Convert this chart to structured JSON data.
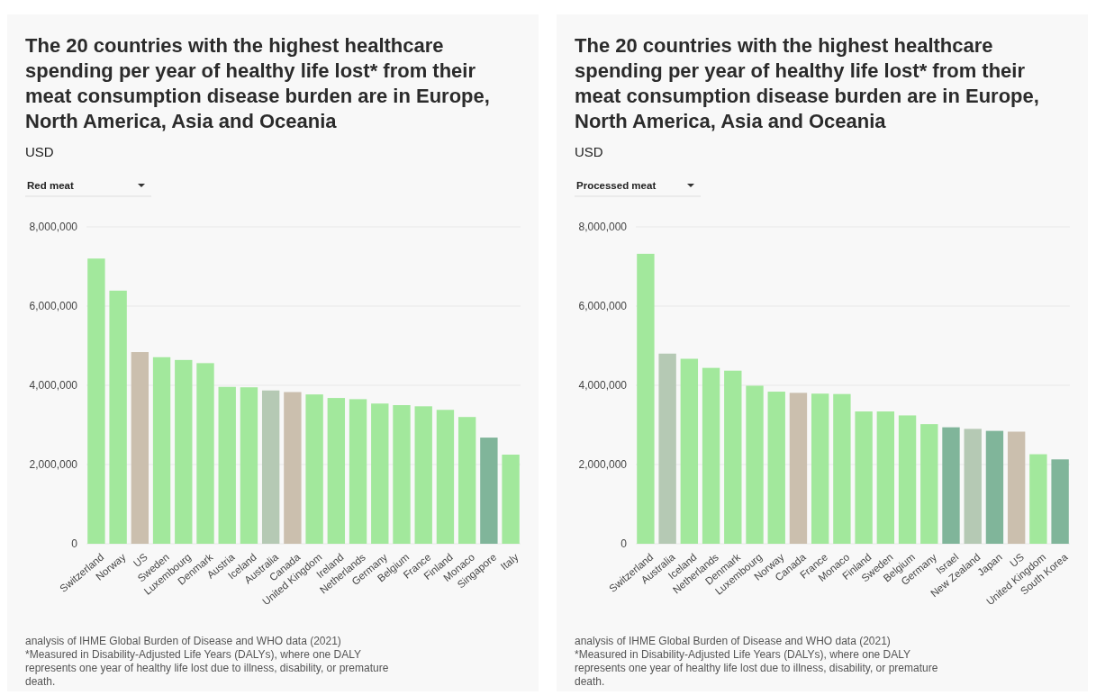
{
  "chart_data": [
    {
      "type": "bar",
      "title": "The 20 countries with the highest healthcare spending per year of healthy life lost* from their meat consumption disease burden are in Europe, North America, Asia and Oceania",
      "subtitle": "Red meat",
      "ylabel": "USD",
      "stacked": true,
      "grid": "y",
      "categories": [
        "Switzerland",
        "Norway",
        "US",
        "Sweden",
        "Luxembourg",
        "Denmark",
        "Austria",
        "Iceland",
        "Australia",
        "Canada",
        "United Kingdom",
        "Ireland",
        "Netherlands",
        "Germany",
        "Belgium",
        "France",
        "Finland",
        "Monaco",
        "Singapore",
        "Italy"
      ],
      "series": [
        {
          "color": "#a2e89c",
          "values": [
            7200000,
            6390000,
            null,
            4710000,
            4640000,
            4560000,
            3960000,
            3950000,
            null,
            null,
            3770000,
            3680000,
            3650000,
            3540000,
            3500000,
            3470000,
            3380000,
            3200000,
            null,
            2250000
          ]
        },
        {
          "color": "#cbbfae",
          "values": [
            null,
            null,
            4840000,
            null,
            null,
            null,
            null,
            null,
            null,
            3830000,
            null,
            null,
            null,
            null,
            null,
            null,
            null,
            null,
            null,
            null
          ]
        },
        {
          "color": "#80b59a",
          "values": [
            null,
            null,
            null,
            null,
            null,
            null,
            null,
            null,
            null,
            null,
            null,
            null,
            null,
            null,
            null,
            null,
            null,
            null,
            2680000,
            null
          ]
        },
        {
          "color": "#b5c9b4",
          "values": [
            null,
            null,
            null,
            null,
            null,
            null,
            null,
            null,
            3870000,
            null,
            null,
            null,
            null,
            null,
            null,
            null,
            null,
            null,
            null,
            null
          ]
        }
      ],
      "ylim": [
        0,
        8000000
      ],
      "yticks": [
        0,
        {
          "value": 2000000,
          "label": "2,000,000"
        },
        {
          "value": 4000000,
          "label": "4,000,000"
        },
        {
          "value": 6000000,
          "label": "6,000,000"
        },
        {
          "value": 8000000,
          "label": "8,000,000"
        }
      ],
      "annotations": [
        "analysis of IHME Global Burden of Disease and WHO data (2021)",
        "*Measured in Disability-Adjusted Life Years (DALYs), where one DALY represents one year of healthy life lost due to illness, disability, or premature death."
      ]
    },
    {
      "type": "bar",
      "title": "The 20 countries with the highest healthcare spending per year of healthy life lost* from their meat consumption disease burden are in Europe, North America, Asia and Oceania",
      "subtitle": "Processed meat",
      "ylabel": "USD",
      "stacked": true,
      "grid": "y",
      "categories": [
        "Switzerland",
        "Australia",
        "Iceland",
        "Netherlands",
        "Denmark",
        "Luxembourg",
        "Norway",
        "Canada",
        "France",
        "Monaco",
        "Finland",
        "Sweden",
        "Belgium",
        "Germany",
        "Israel",
        "New Zealand",
        "Japan",
        "US",
        "United Kingdom",
        "South Korea"
      ],
      "series": [
        {
          "color": "#a2e89c",
          "values": [
            7320000,
            null,
            4670000,
            4440000,
            4370000,
            3990000,
            3840000,
            null,
            3790000,
            3780000,
            3340000,
            3340000,
            3240000,
            3020000,
            null,
            null,
            null,
            null,
            2260000,
            null
          ]
        },
        {
          "color": "#cbbfae",
          "values": [
            null,
            null,
            null,
            null,
            null,
            null,
            null,
            3810000,
            null,
            null,
            null,
            null,
            null,
            null,
            null,
            null,
            null,
            2830000,
            null,
            null
          ]
        },
        {
          "color": "#80b59a",
          "values": [
            null,
            null,
            null,
            null,
            null,
            null,
            null,
            null,
            null,
            null,
            null,
            null,
            null,
            null,
            2940000,
            null,
            2850000,
            null,
            null,
            2130000
          ]
        },
        {
          "color": "#b5c9b4",
          "values": [
            null,
            4800000,
            null,
            null,
            null,
            null,
            null,
            null,
            null,
            null,
            null,
            null,
            null,
            null,
            null,
            2900000,
            null,
            null,
            null,
            null
          ]
        }
      ],
      "ylim": [
        0,
        8000000
      ],
      "yticks": [
        0,
        {
          "value": 2000000,
          "label": "2,000,000"
        },
        {
          "value": 4000000,
          "label": "4,000,000"
        },
        {
          "value": 6000000,
          "label": "6,000,000"
        },
        {
          "value": 8000000,
          "label": "8,000,000"
        }
      ],
      "annotations": [
        "analysis of IHME Global Burden of Disease and WHO data (2021)",
        "*Measured in Disability-Adjusted Life Years (DALYs), where one DALY represents one year of healthy life lost due to illness, disability, or premature death."
      ]
    }
  ]
}
